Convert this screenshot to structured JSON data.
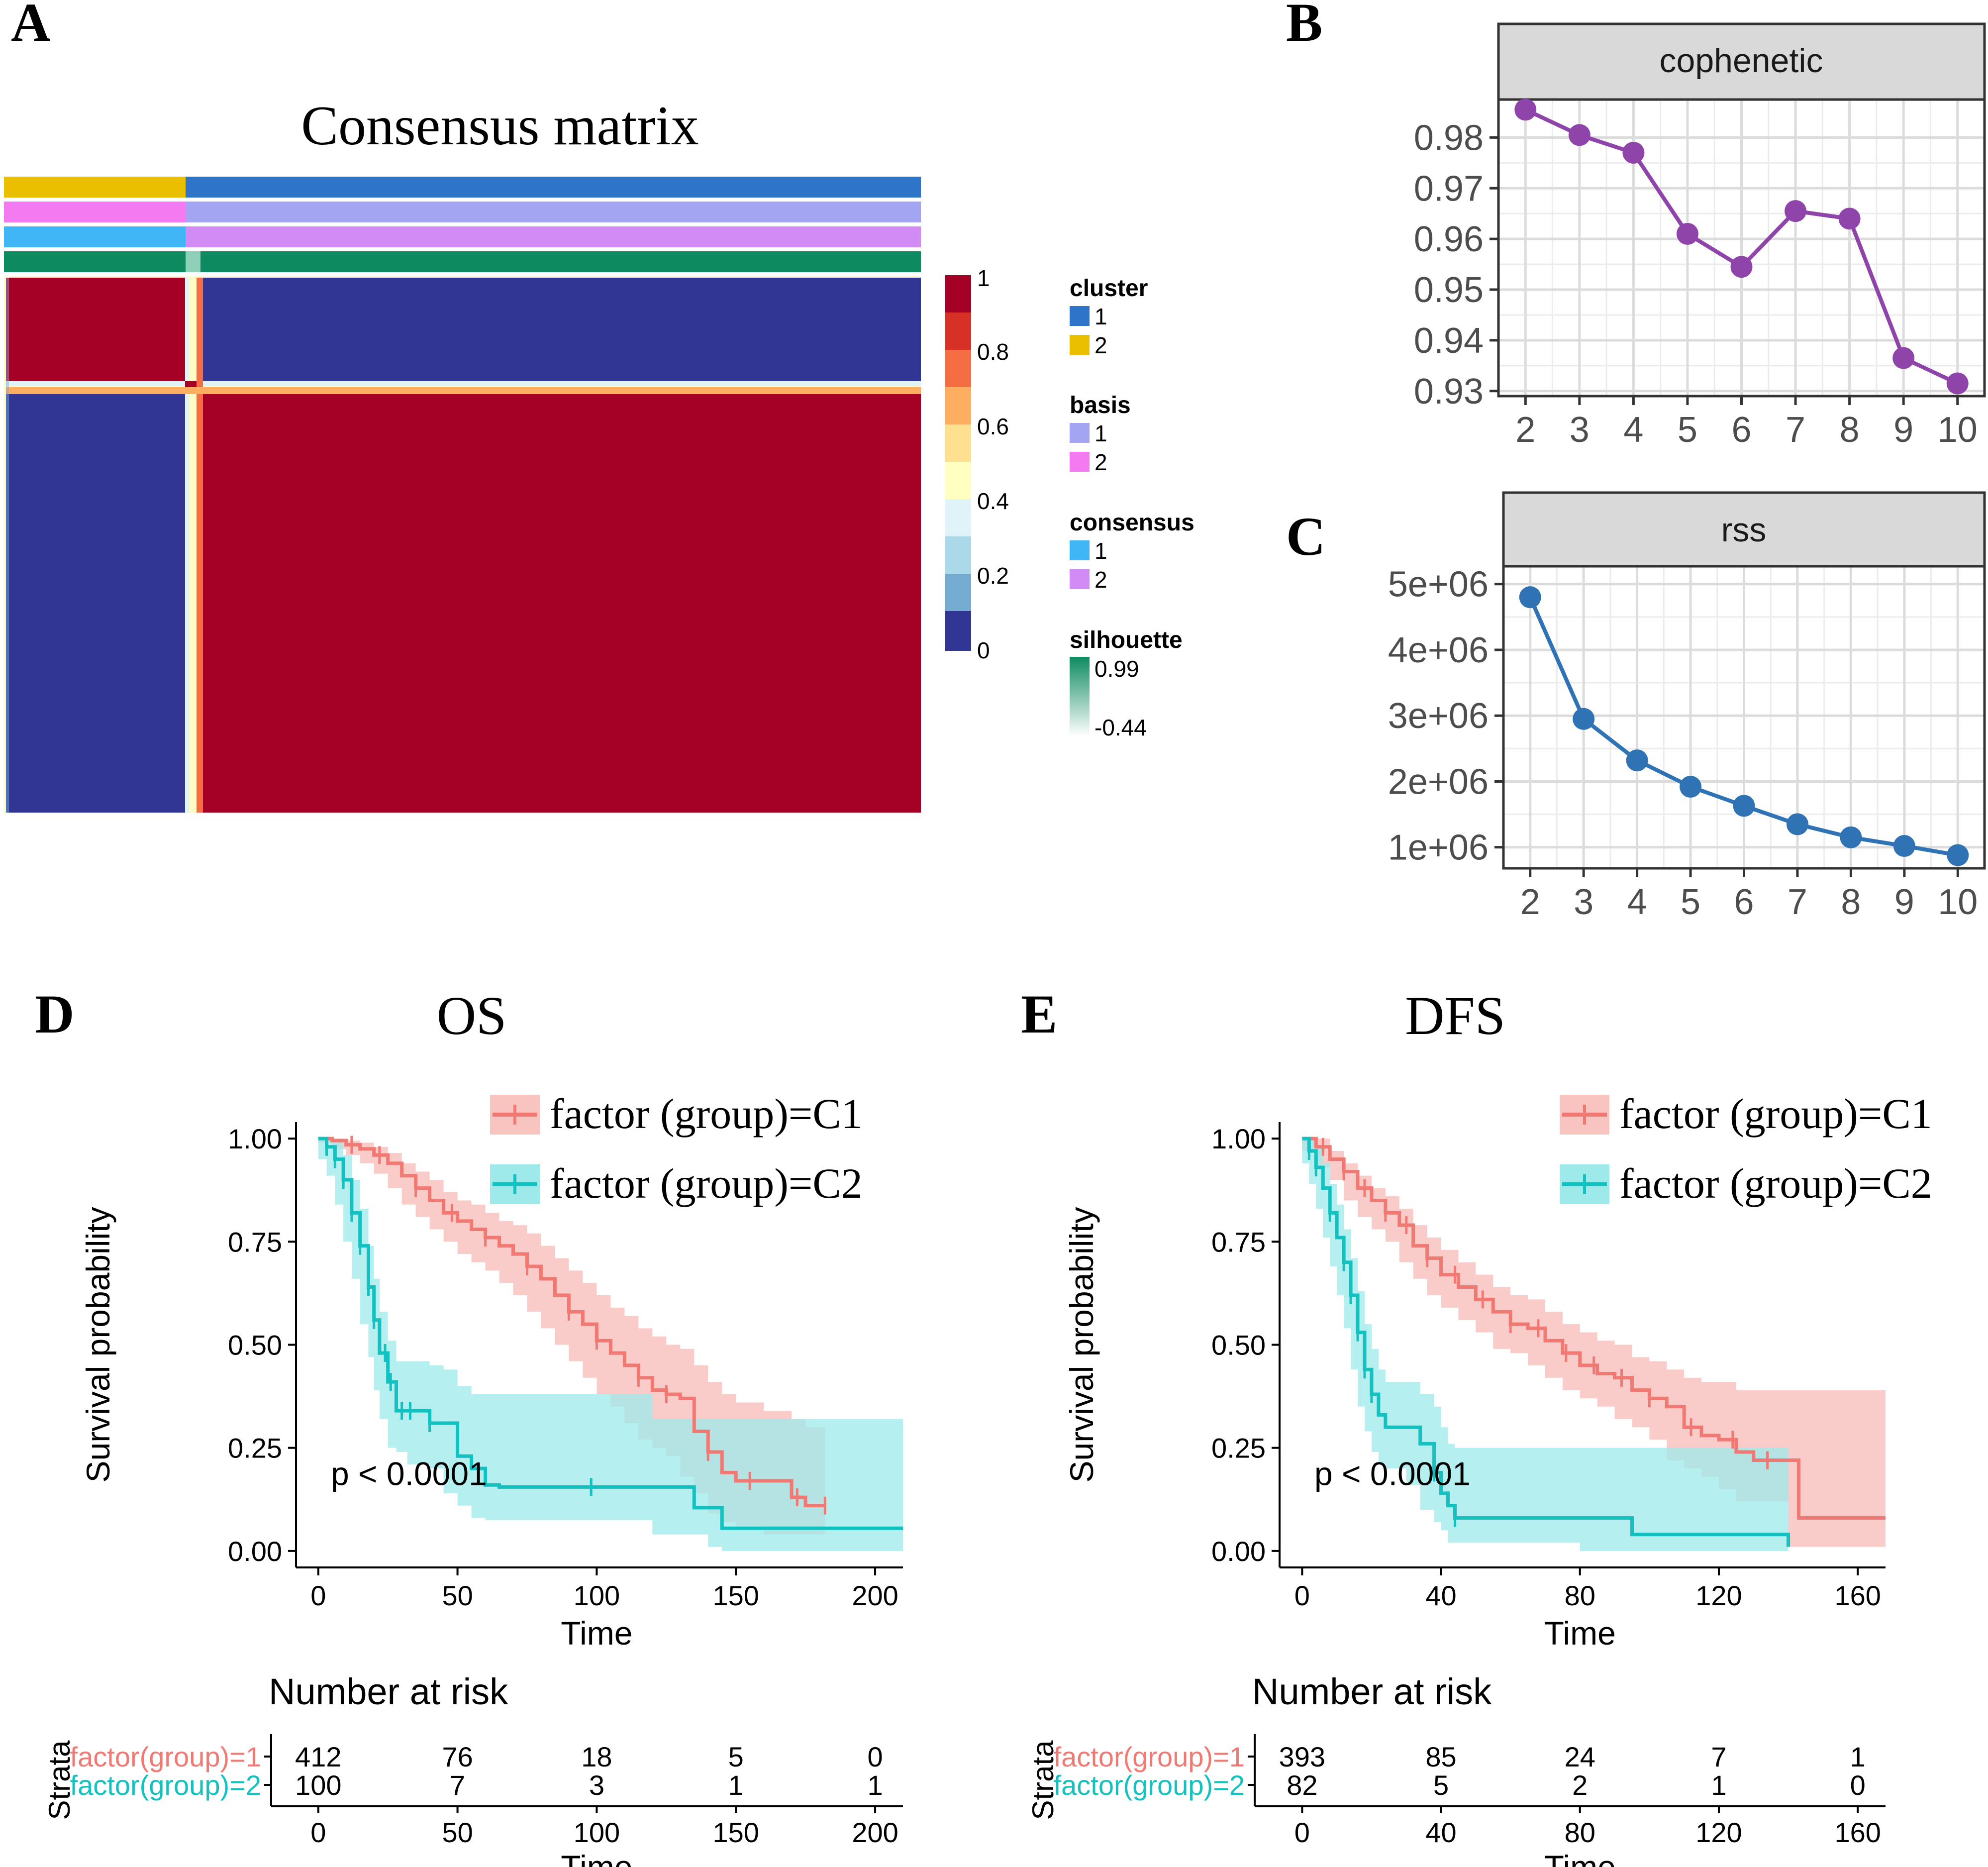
{
  "panels": {
    "a": {
      "letter": "A",
      "title": "Consensus matrix"
    },
    "b": {
      "letter": "B"
    },
    "c": {
      "letter": "C"
    },
    "d": {
      "letter": "D"
    },
    "e": {
      "letter": "E"
    }
  },
  "colors": {
    "red": "#a50026",
    "blue": "#313695",
    "cluster1": "#2e74c8",
    "cluster2": "#e9bf00",
    "basis1": "#a3a5f2",
    "basis2": "#f37af0",
    "consensus1": "#41b6f6",
    "consensus2": "#d28bf5",
    "silhouette": "#0e8a60",
    "cophenetic_line": "#8e44a8",
    "rss_line": "#2f73b5",
    "c1": "#f07a73",
    "c1_band": "#f9c3bf",
    "c2": "#12c1c0",
    "c2_band": "#9ee9ea"
  },
  "chart_data": [
    {
      "id": "consensus-matrix",
      "type": "heatmap",
      "title": "Consensus matrix",
      "color_scale": {
        "ticks": [
          "1",
          "0.8",
          "0.6",
          "0.4",
          "0.2",
          "0"
        ],
        "range": [
          0,
          1
        ]
      },
      "blocks": [
        {
          "rows": "cluster 2",
          "cols": "cluster 2",
          "value": 1
        },
        {
          "rows": "cluster 2",
          "cols": "cluster 1",
          "value": 0
        },
        {
          "rows": "cluster 1",
          "cols": "cluster 2",
          "value": 0
        },
        {
          "rows": "cluster 1",
          "cols": "cluster 1",
          "value": 1
        }
      ],
      "annotation_tracks": [
        "cluster",
        "basis",
        "consensus",
        "silhouette"
      ],
      "legend": {
        "cluster": {
          "title": "cluster",
          "entries": [
            "1",
            "2"
          ]
        },
        "basis": {
          "title": "basis",
          "entries": [
            "1",
            "2"
          ]
        },
        "consensus": {
          "title": "consensus",
          "entries": [
            "1",
            "2"
          ]
        },
        "silhouette": {
          "title": "silhouette",
          "max": "0.99",
          "min": "-0.44"
        }
      }
    },
    {
      "id": "cophenetic",
      "type": "line",
      "strip": "cophenetic",
      "x": [
        2,
        3,
        4,
        5,
        6,
        7,
        8,
        9,
        10
      ],
      "y": [
        0.9855,
        0.9805,
        0.977,
        0.961,
        0.9545,
        0.9655,
        0.964,
        0.9365,
        0.9315
      ],
      "x_ticks": [
        "2",
        "3",
        "4",
        "5",
        "6",
        "7",
        "8",
        "9",
        "10"
      ],
      "y_ticks": [
        "0.98",
        "0.97",
        "0.96",
        "0.95",
        "0.94",
        "0.93"
      ],
      "y_tick_values": [
        0.98,
        0.97,
        0.96,
        0.95,
        0.94,
        0.93
      ],
      "ylim": [
        0.929,
        0.9875
      ]
    },
    {
      "id": "rss",
      "type": "line",
      "strip": "rss",
      "x": [
        2,
        3,
        4,
        5,
        6,
        7,
        8,
        9,
        10
      ],
      "y": [
        4800000,
        2950000,
        2320000,
        1920000,
        1630000,
        1350000,
        1150000,
        1020000,
        880000
      ],
      "x_ticks": [
        "2",
        "3",
        "4",
        "5",
        "6",
        "7",
        "8",
        "9",
        "10"
      ],
      "y_ticks": [
        "5e+06",
        "4e+06",
        "3e+06",
        "2e+06",
        "1e+06"
      ],
      "y_tick_values": [
        5000000,
        4000000,
        3000000,
        2000000,
        1000000
      ],
      "ylim": [
        680000,
        5270000
      ]
    },
    {
      "id": "os",
      "type": "line",
      "title": "OS",
      "xlabel": "Time",
      "ylabel": "Survival probability",
      "xlim": [
        -8,
        210
      ],
      "ylim": [
        -0.04,
        1.04
      ],
      "x_ticks": [
        "0",
        "50",
        "100",
        "150",
        "200"
      ],
      "x_tick_values": [
        0,
        50,
        100,
        150,
        200
      ],
      "y_ticks": [
        "1.00",
        "0.75",
        "0.50",
        "0.25",
        "0.00"
      ],
      "y_tick_values": [
        1.0,
        0.75,
        0.5,
        0.25,
        0.0
      ],
      "pvalue": "p < 0.0001",
      "legend": [
        "factor (group)=C1",
        "factor (group)=C2"
      ],
      "series": [
        {
          "name": "factor (group)=C1",
          "x": [
            0,
            5,
            10,
            15,
            20,
            25,
            30,
            35,
            40,
            45,
            50,
            55,
            60,
            65,
            70,
            75,
            80,
            85,
            90,
            95,
            100,
            105,
            110,
            115,
            120,
            125,
            130,
            135,
            140,
            145,
            150,
            160,
            170,
            175,
            182
          ],
          "y": [
            1.0,
            0.995,
            0.985,
            0.975,
            0.96,
            0.94,
            0.91,
            0.88,
            0.85,
            0.82,
            0.8,
            0.78,
            0.76,
            0.74,
            0.72,
            0.69,
            0.66,
            0.62,
            0.58,
            0.55,
            0.51,
            0.48,
            0.45,
            0.42,
            0.39,
            0.38,
            0.37,
            0.29,
            0.24,
            0.19,
            0.17,
            0.17,
            0.13,
            0.11,
            0.11
          ],
          "lower": [
            1.0,
            0.99,
            0.975,
            0.96,
            0.94,
            0.915,
            0.88,
            0.84,
            0.81,
            0.78,
            0.75,
            0.72,
            0.7,
            0.68,
            0.65,
            0.62,
            0.58,
            0.54,
            0.5,
            0.46,
            0.42,
            0.38,
            0.35,
            0.31,
            0.27,
            0.25,
            0.23,
            0.18,
            0.14,
            0.09,
            0.07,
            0.06,
            0.04,
            0.04,
            0.04
          ],
          "upper": [
            1.0,
            1.0,
            0.995,
            0.99,
            0.98,
            0.965,
            0.94,
            0.92,
            0.9,
            0.87,
            0.85,
            0.84,
            0.82,
            0.8,
            0.79,
            0.77,
            0.74,
            0.71,
            0.68,
            0.65,
            0.62,
            0.59,
            0.57,
            0.54,
            0.52,
            0.5,
            0.49,
            0.45,
            0.41,
            0.38,
            0.36,
            0.34,
            0.32,
            0.3,
            0.3
          ],
          "censored": [
            12,
            22,
            35,
            48,
            60,
            75,
            90,
            100,
            115,
            125,
            140,
            155,
            172,
            182
          ]
        },
        {
          "name": "factor (group)=C2",
          "x": [
            0,
            3,
            6,
            9,
            12,
            15,
            18,
            20,
            22,
            25,
            28,
            32,
            40,
            45,
            50,
            55,
            60,
            65,
            80,
            100,
            120,
            135,
            140,
            145,
            150,
            160,
            210
          ],
          "y": [
            1.0,
            0.98,
            0.95,
            0.9,
            0.82,
            0.74,
            0.64,
            0.56,
            0.48,
            0.41,
            0.34,
            0.34,
            0.31,
            0.31,
            0.23,
            0.2,
            0.16,
            0.155,
            0.155,
            0.155,
            0.155,
            0.105,
            0.105,
            0.055,
            0.055,
            0.055,
            0.055
          ],
          "lower": [
            1.0,
            0.95,
            0.91,
            0.84,
            0.75,
            0.66,
            0.55,
            0.47,
            0.39,
            0.32,
            0.25,
            0.24,
            0.21,
            0.2,
            0.14,
            0.11,
            0.08,
            0.075,
            0.075,
            0.075,
            0.075,
            0.04,
            0.04,
            0.01,
            0.0,
            0.0,
            0.0
          ],
          "upper": [
            1.0,
            1.0,
            0.99,
            0.96,
            0.9,
            0.83,
            0.74,
            0.66,
            0.58,
            0.51,
            0.46,
            0.46,
            0.45,
            0.44,
            0.4,
            0.38,
            0.38,
            0.38,
            0.38,
            0.38,
            0.32,
            0.32,
            0.32,
            0.32,
            0.32,
            0.32,
            0.32
          ],
          "censored": [
            3,
            6,
            9,
            12,
            15,
            18,
            20,
            24,
            26,
            30,
            33,
            40,
            98
          ]
        }
      ],
      "risk_table": {
        "title": "Number at risk",
        "strata_label": "Strata",
        "x_ticks": [
          "0",
          "50",
          "100",
          "150",
          "200"
        ],
        "xlabel": "Time",
        "rows": [
          {
            "label": "factor(group)=1",
            "values": [
              "412",
              "76",
              "18",
              "5",
              "0"
            ]
          },
          {
            "label": "factor(group)=2",
            "values": [
              "100",
              "7",
              "3",
              "1",
              "1"
            ]
          }
        ]
      }
    },
    {
      "id": "dfs",
      "type": "line",
      "title": "DFS",
      "xlabel": "Time",
      "ylabel": "Survival probability",
      "xlim": [
        -6.5,
        168
      ],
      "ylim": [
        -0.04,
        1.04
      ],
      "x_ticks": [
        "0",
        "40",
        "80",
        "120",
        "160"
      ],
      "x_tick_values": [
        0,
        40,
        80,
        120,
        160
      ],
      "y_ticks": [
        "1.00",
        "0.75",
        "0.50",
        "0.25",
        "0.00"
      ],
      "y_tick_values": [
        1.0,
        0.75,
        0.5,
        0.25,
        0.0
      ],
      "pvalue": "p < 0.0001",
      "legend": [
        "factor (group)=C1",
        "factor (group)=C2"
      ],
      "series": [
        {
          "name": "factor (group)=C1",
          "x": [
            0,
            4,
            8,
            12,
            16,
            20,
            24,
            28,
            32,
            36,
            40,
            45,
            50,
            55,
            60,
            65,
            70,
            75,
            80,
            85,
            90,
            95,
            100,
            105,
            110,
            115,
            120,
            125,
            130,
            135,
            140,
            143,
            168
          ],
          "y": [
            1.0,
            0.98,
            0.95,
            0.92,
            0.88,
            0.85,
            0.82,
            0.79,
            0.74,
            0.71,
            0.67,
            0.64,
            0.61,
            0.58,
            0.55,
            0.54,
            0.51,
            0.48,
            0.45,
            0.43,
            0.42,
            0.39,
            0.37,
            0.35,
            0.3,
            0.28,
            0.27,
            0.24,
            0.22,
            0.22,
            0.22,
            0.08,
            0.08
          ],
          "lower": [
            1.0,
            0.97,
            0.93,
            0.9,
            0.85,
            0.81,
            0.78,
            0.75,
            0.7,
            0.66,
            0.62,
            0.59,
            0.56,
            0.53,
            0.49,
            0.48,
            0.45,
            0.42,
            0.39,
            0.37,
            0.35,
            0.32,
            0.3,
            0.27,
            0.22,
            0.2,
            0.18,
            0.15,
            0.12,
            0.12,
            0.12,
            0.01,
            0.01
          ],
          "upper": [
            1.0,
            1.0,
            0.97,
            0.94,
            0.91,
            0.88,
            0.86,
            0.83,
            0.79,
            0.76,
            0.73,
            0.7,
            0.67,
            0.64,
            0.62,
            0.61,
            0.58,
            0.55,
            0.53,
            0.51,
            0.5,
            0.47,
            0.46,
            0.44,
            0.42,
            0.41,
            0.41,
            0.39,
            0.39,
            0.39,
            0.39,
            0.39,
            0.39
          ],
          "censored": [
            6,
            12,
            18,
            24,
            30,
            36,
            44,
            52,
            60,
            68,
            76,
            84,
            92,
            100,
            112,
            124,
            134
          ]
        },
        {
          "name": "factor (group)=C2",
          "x": [
            0,
            2,
            4,
            6,
            8,
            10,
            12,
            14,
            16,
            18,
            20,
            22,
            24,
            30,
            34,
            38,
            40,
            42,
            44,
            60,
            80,
            95,
            100,
            120,
            130,
            140
          ],
          "y": [
            1.0,
            0.97,
            0.93,
            0.88,
            0.82,
            0.76,
            0.7,
            0.62,
            0.53,
            0.44,
            0.38,
            0.33,
            0.3,
            0.3,
            0.26,
            0.19,
            0.14,
            0.11,
            0.08,
            0.08,
            0.08,
            0.04,
            0.04,
            0.04,
            0.04,
            0.01
          ],
          "lower": [
            1.0,
            0.94,
            0.89,
            0.83,
            0.76,
            0.69,
            0.62,
            0.54,
            0.44,
            0.35,
            0.29,
            0.24,
            0.21,
            0.2,
            0.16,
            0.1,
            0.07,
            0.05,
            0.02,
            0.02,
            0.02,
            0.0,
            0.0,
            0.0,
            0.0,
            0.0
          ],
          "upper": [
            1.0,
            1.0,
            0.98,
            0.94,
            0.89,
            0.84,
            0.78,
            0.71,
            0.63,
            0.55,
            0.49,
            0.44,
            0.41,
            0.41,
            0.38,
            0.35,
            0.3,
            0.26,
            0.25,
            0.25,
            0.25,
            0.25,
            0.25,
            0.25,
            0.25,
            0.25
          ],
          "censored": [
            2,
            4,
            8,
            12,
            14,
            16,
            18,
            20,
            38,
            44
          ]
        }
      ],
      "risk_table": {
        "title": "Number at risk",
        "strata_label": "Strata",
        "x_ticks": [
          "0",
          "40",
          "80",
          "120",
          "160"
        ],
        "xlabel": "Time",
        "rows": [
          {
            "label": "factor(group)=1",
            "values": [
              "393",
              "85",
              "24",
              "7",
              "1"
            ]
          },
          {
            "label": "factor(group)=2",
            "values": [
              "82",
              "5",
              "2",
              "1",
              "0"
            ]
          }
        ]
      }
    }
  ]
}
